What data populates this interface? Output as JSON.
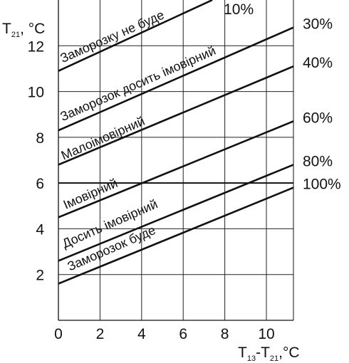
{
  "chart_data": {
    "type": "line",
    "xlabel": {
      "main": "T",
      "sub1": "13",
      "mid": "-T",
      "sub2": "21",
      "unit": ",°C"
    },
    "ylabel": {
      "main": "T",
      "sub": "21",
      "unit": ", °C"
    },
    "xlim": [
      0,
      11.3
    ],
    "ylim": [
      0,
      14
    ],
    "x_ticks": [
      0,
      2,
      4,
      6,
      8,
      10
    ],
    "y_ticks": [
      2,
      4,
      6,
      8,
      10,
      12
    ],
    "grid": true,
    "series": [
      {
        "name": "10%",
        "x": [
          0,
          7.4
        ],
        "y": [
          10.9,
          14.0
        ]
      },
      {
        "name": "30%",
        "x": [
          0,
          11.3
        ],
        "y": [
          8.3,
          12.8
        ]
      },
      {
        "name": "40%",
        "x": [
          0,
          11.3
        ],
        "y": [
          6.8,
          11.1
        ]
      },
      {
        "name": "60%",
        "x": [
          0,
          11.3
        ],
        "y": [
          4.5,
          8.7
        ]
      },
      {
        "name": "80%",
        "x": [
          0,
          11.3
        ],
        "y": [
          2.6,
          6.8
        ]
      },
      {
        "name": "100%",
        "x": [
          0,
          11.3
        ],
        "y": [
          1.6,
          5.8
        ]
      }
    ],
    "horizontal_line": {
      "y": 6
    },
    "zone_labels": [
      {
        "text": "Заморозку не буде",
        "x": 0.2,
        "y": 11.25
      },
      {
        "text": "Заморозок досить імовірний",
        "x": 0.2,
        "y": 8.7
      },
      {
        "text": "Малоімовірний",
        "x": 0.25,
        "y": 7.0
      },
      {
        "text": "Імовірний",
        "x": 0.35,
        "y": 4.85
      },
      {
        "text": "Досить імовірний",
        "x": 0.3,
        "y": 3.15
      },
      {
        "text": "Заморозок буде",
        "x": 0.55,
        "y": 2.15
      }
    ]
  }
}
